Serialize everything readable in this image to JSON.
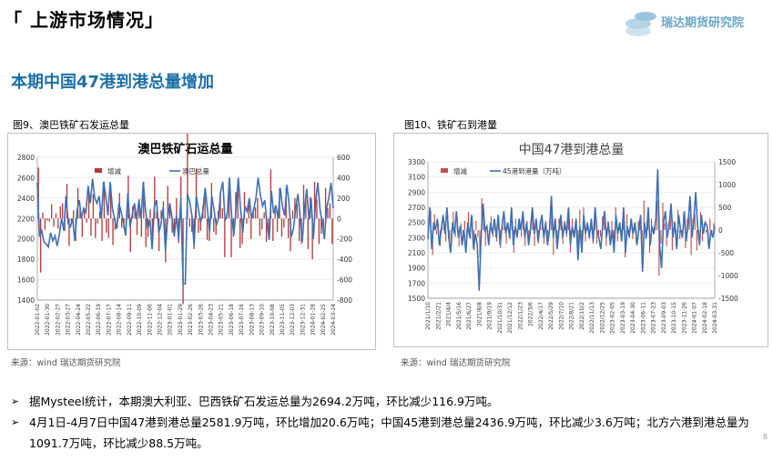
{
  "header": {
    "section_title": "「 上游市场情况」",
    "logo_text": "瑞达期货研究院",
    "subtitle": "本期中国47港到港总量增加"
  },
  "charts": [
    {
      "caption": "图9、澳巴铁矿石发运总量",
      "source": "来源：wind   瑞达期货研究院",
      "chart_data": {
        "type": "bar+line",
        "title": "澳巴铁矿石运总量",
        "y_left": {
          "min": 1400,
          "max": 2800,
          "ticks": [
            1400,
            1600,
            1800,
            2000,
            2200,
            2400,
            2600,
            2800
          ]
        },
        "y_right": {
          "min": -800,
          "max": 600,
          "ticks": [
            -800,
            -600,
            -400,
            -200,
            0,
            200,
            400,
            600
          ]
        },
        "x_tick_labels": [
          "2022-01-02",
          "2022-01-30",
          "2022-02-27",
          "2022-03-27",
          "2022-04-24",
          "2022-05-22",
          "2022-06-19",
          "2022-07-17",
          "2022-08-14",
          "2022-09-11",
          "2022-10-09",
          "2022-11-06",
          "2022-12-04",
          "2023-01-01",
          "2023-01-29",
          "2023-02-26",
          "2023-03-26",
          "2023-04-23",
          "2023-05-21",
          "2023-06-18",
          "2023-07-16",
          "2023-08-13",
          "2023-09-10",
          "2023-10-08",
          "2023-11-05",
          "2023-12-03",
          "2023-12-31",
          "2024-01-28",
          "2024-02-25",
          "2024-03-24"
        ],
        "legend": [
          {
            "name": "增减",
            "color": "#b23a3a"
          },
          {
            "name": "澳巴总量",
            "color": "#3e70b3"
          }
        ],
        "line_axis": "left",
        "bar_axis": "right",
        "line_values": [
          2550,
          2020,
          2080,
          1970,
          1950,
          1920,
          2060,
          1980,
          2030,
          1930,
          2050,
          2200,
          2080,
          2420,
          2150,
          2120,
          2200,
          1980,
          2280,
          2380,
          2200,
          2300,
          2260,
          2520,
          2350,
          2590,
          2400,
          2350,
          2420,
          2200,
          2560,
          2420,
          2230,
          2560,
          2300,
          2190,
          2100,
          2350,
          2260,
          2160,
          2030,
          2450,
          2120,
          2240,
          2350,
          2190,
          2380,
          2200,
          2560,
          2280,
          2100,
          2190,
          1900,
          2310,
          2380,
          2060,
          2140,
          2310,
          1880,
          2200,
          2350,
          2210,
          2030,
          2230,
          1990,
          2400,
          1560,
          1560,
          2440,
          2360,
          2230,
          1930,
          2420,
          2280,
          2160,
          2280,
          2500,
          2290,
          2070,
          2420,
          2290,
          2130,
          2200,
          2460,
          2560,
          2180,
          2230,
          2600,
          2220,
          2040,
          2300,
          2600,
          2310,
          2060,
          2320,
          2270,
          2400,
          2200,
          2290,
          2400,
          2600,
          2430,
          2320,
          2380,
          2150,
          1990,
          2470,
          2250,
          2330,
          2200,
          2500,
          2320,
          2230,
          2530,
          2340,
          2020,
          2100,
          2300,
          2440,
          2220,
          1970,
          2300,
          2490,
          2190,
          2400,
          2000,
          2360,
          2550,
          2300,
          2150,
          2000,
          2300,
          2400,
          2550,
          2300
        ],
        "bar_values": [
          500,
          -530,
          60,
          -110,
          -20,
          -30,
          140,
          -80,
          50,
          -100,
          120,
          150,
          -120,
          340,
          -270,
          -30,
          80,
          -220,
          300,
          100,
          -180,
          100,
          -40,
          260,
          -170,
          240,
          -190,
          -50,
          70,
          -220,
          360,
          -140,
          -190,
          330,
          -260,
          -110,
          -90,
          250,
          -90,
          -100,
          -130,
          420,
          -330,
          120,
          110,
          -160,
          190,
          -180,
          360,
          -280,
          -180,
          90,
          -290,
          410,
          70,
          -320,
          80,
          170,
          -430,
          320,
          150,
          -140,
          -180,
          200,
          -240,
          410,
          -840,
          0,
          880,
          -80,
          -130,
          -300,
          490,
          -140,
          -120,
          120,
          220,
          -210,
          -220,
          350,
          -130,
          -160,
          70,
          260,
          100,
          -380,
          50,
          370,
          -380,
          -180,
          260,
          300,
          -290,
          -250,
          260,
          -50,
          130,
          -200,
          90,
          110,
          200,
          -170,
          -110,
          60,
          -230,
          -160,
          480,
          -220,
          80,
          -130,
          300,
          -180,
          -90,
          300,
          -190,
          -320,
          80,
          200,
          140,
          -220,
          -250,
          330,
          190,
          -300,
          210,
          -400,
          360,
          190,
          -250,
          -150,
          -150,
          300,
          100,
          150,
          -250
        ]
      }
    },
    {
      "caption": "图10、铁矿石到港量",
      "source": "来源：wind   瑞达期货研究院",
      "chart_data": {
        "type": "bar+line",
        "title": "中国47港到港总量",
        "y_left": {
          "min": 1500,
          "max": 3300,
          "ticks": [
            1500,
            1700,
            1900,
            2100,
            2300,
            2500,
            2700,
            2900,
            3100,
            3300
          ]
        },
        "y_right": {
          "min": -1500,
          "max": 1500,
          "ticks": [
            -1500,
            -1000,
            -500,
            0,
            500,
            1000,
            1500
          ]
        },
        "x_tick_labels": [
          "2021/1/10",
          "2021/2/21",
          "2021/4/4",
          "2021/5/16",
          "2021/6/27",
          "2021/8/8",
          "2021/9/19",
          "2021/10/31",
          "2021/12/12",
          "2022/1/23",
          "2022/3/6",
          "2022/4/17",
          "2022/5/29",
          "2022/7/10",
          "2022/8/21",
          "2022/10/2",
          "2022/11/13",
          "2022/12/25",
          "2023-02-05",
          "2023-03-19",
          "2023-04-30",
          "2023-06-11",
          "2023-07-23",
          "2023-09-03",
          "2023-10-15",
          "2023-11-26",
          "2024-01-07",
          "2024-02-18",
          "2024-03-31"
        ],
        "legend": [
          {
            "name": "增减",
            "color": "#c0504d"
          },
          {
            "name": "45港到港量（万吨）",
            "color": "#3e70b3"
          }
        ],
        "line_axis": "left",
        "bar_axis": "right",
        "line_values": [
          2280,
          2700,
          2150,
          2500,
          2400,
          2550,
          2200,
          2400,
          2600,
          2350,
          2700,
          2300,
          2100,
          2500,
          2350,
          2650,
          2300,
          2450,
          2200,
          2400,
          2100,
          2500,
          2300,
          2600,
          2150,
          2350,
          2200,
          1600,
          2300,
          2750,
          2400,
          2450,
          2200,
          2500,
          2350,
          2550,
          2300,
          2600,
          2200,
          2450,
          2650,
          2350,
          2500,
          2300,
          2700,
          2200,
          2450,
          2300,
          2550,
          2400,
          2650,
          2300,
          2500,
          2200,
          2400,
          2700,
          2350,
          2550,
          2250,
          2450,
          2600,
          2300,
          2500,
          2200,
          2400,
          2850,
          2300,
          2550,
          2150,
          2400,
          2600,
          2300,
          2500,
          2350,
          2700,
          2200,
          2450,
          2300,
          2550,
          2000,
          2450,
          2100,
          2600,
          2350,
          2500,
          2300,
          2550,
          2250,
          2700,
          2400,
          2300,
          2150,
          2450,
          2650,
          2300,
          2500,
          2200,
          2400,
          2100,
          2600,
          2350,
          2500,
          2250,
          2700,
          2100,
          2450,
          2300,
          2550,
          2350,
          2500,
          2200,
          2400,
          2600,
          1850,
          2500,
          2300,
          2700,
          2200,
          2450,
          2350,
          2550,
          3200,
          2200,
          1900,
          2500,
          2650,
          2300,
          2450,
          2750,
          2300,
          2500,
          2150,
          2600,
          2400,
          2300,
          2650,
          2250,
          2500,
          2850,
          2300,
          2550,
          2900,
          2450,
          2200,
          2600,
          2350,
          2500,
          2450,
          2150,
          2400,
          2300,
          2450
        ],
        "bar_values": [
          0,
          420,
          -550,
          350,
          -100,
          150,
          -350,
          200,
          200,
          -250,
          350,
          -400,
          -200,
          400,
          -150,
          300,
          -350,
          150,
          -250,
          200,
          -300,
          400,
          -200,
          300,
          -450,
          200,
          -150,
          -600,
          700,
          450,
          -350,
          50,
          -250,
          300,
          -150,
          200,
          -250,
          300,
          -400,
          250,
          200,
          -300,
          150,
          -200,
          400,
          -500,
          250,
          -150,
          250,
          -150,
          250,
          -350,
          200,
          -300,
          200,
          300,
          -350,
          200,
          -300,
          200,
          150,
          -300,
          200,
          -300,
          200,
          450,
          -550,
          250,
          -400,
          250,
          200,
          -300,
          200,
          -150,
          350,
          -500,
          250,
          -150,
          250,
          -550,
          450,
          -350,
          500,
          -250,
          150,
          -200,
          250,
          -300,
          450,
          -300,
          -100,
          -150,
          300,
          200,
          -350,
          200,
          -300,
          200,
          -300,
          500,
          -250,
          150,
          -250,
          450,
          -600,
          350,
          -150,
          250,
          -200,
          150,
          -300,
          200,
          200,
          -750,
          650,
          -200,
          400,
          -500,
          250,
          -100,
          200,
          650,
          -1000,
          -300,
          600,
          150,
          -350,
          150,
          300,
          -450,
          200,
          -350,
          450,
          -200,
          -100,
          350,
          -400,
          250,
          350,
          -550,
          250,
          350,
          -450,
          -250,
          400,
          -250,
          150,
          -50,
          -300,
          250,
          -100,
          150
        ]
      }
    }
  ],
  "bullets": [
    "据Mysteel统计，本期澳大利亚、巴西铁矿石发运总量为2694.2万吨，环比减少116.9万吨。",
    "4月1日-4月7日中国47港到港总量2581.9万吨，环比增加20.6万吨；中国45港到港总量2436.9万吨，环比减少3.6万吨；北方六港到港总量为1091.7万吨，环比减少88.5万吨。"
  ],
  "page_number": "8"
}
